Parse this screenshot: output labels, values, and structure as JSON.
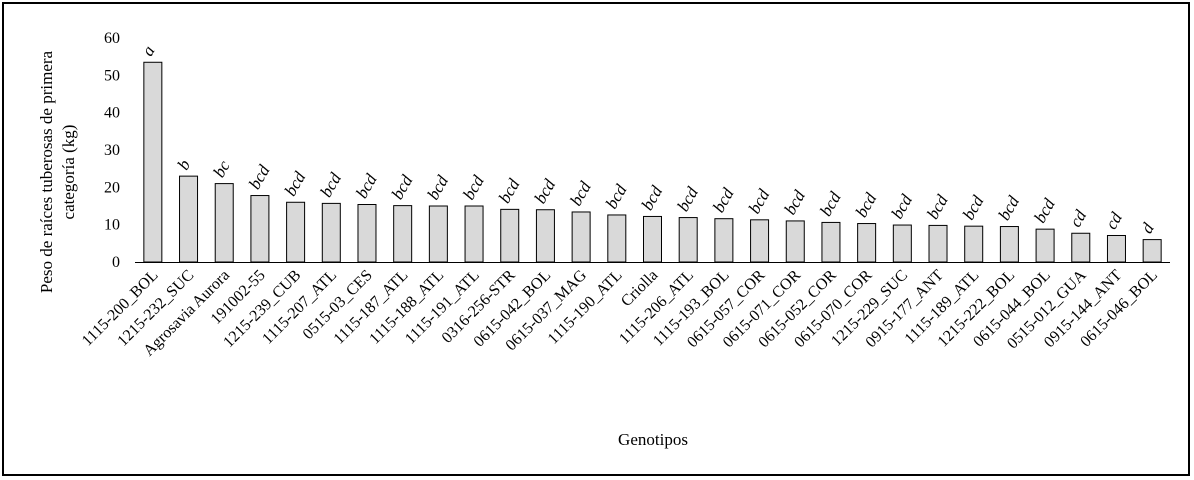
{
  "chart_data": {
    "type": "bar",
    "xlabel": "Genotipos",
    "ylabel_lines": [
      "Peso de raíces tuberosas de primera",
      "categoría (kg)"
    ],
    "ylim": [
      0,
      60
    ],
    "yticks": [
      "0",
      "10",
      "20",
      "30",
      "40",
      "50",
      "60"
    ],
    "grid": false,
    "bar_color": "#d9d9d9",
    "categories": [
      "1115-200_BOL",
      "1215-232_SUC",
      "Agrosavia Aurora",
      "191002-55",
      "1215-239_CUB",
      "1115-207_ATL",
      "0515-03_CES",
      "1115-187_ATL",
      "1115-188_ATL",
      "1115-191_ATL",
      "0316-256-STR",
      "0615-042_BOL",
      "0615-037_MAG",
      "1115-190_ATL",
      "Criolla",
      "1115-206_ATL",
      "1115-193_BOL",
      "0615-057_COR",
      "0615-071_COR",
      "0615-052_COR",
      "0615-070_COR",
      "1215-229_SUC",
      "0915-177_ANT",
      "1115-189_ATL",
      "1215-222_BOL",
      "0615-044_BOL",
      "0515-012_GUA",
      "0915-144_ANT",
      "0615-046_BOL"
    ],
    "values": [
      53.5,
      23,
      21,
      17.8,
      16,
      15.7,
      15.4,
      15.1,
      15.0,
      15.0,
      14.1,
      14.0,
      13.4,
      12.6,
      12.2,
      11.9,
      11.6,
      11.3,
      11.0,
      10.6,
      10.3,
      9.9,
      9.8,
      9.6,
      9.5,
      8.8,
      7.7,
      7.1,
      6.0
    ],
    "letters": [
      "a",
      "b",
      "bc",
      "bcd",
      "bcd",
      "bcd",
      "bcd",
      "bcd",
      "bcd",
      "bcd",
      "bcd",
      "bcd",
      "bcd",
      "bcd",
      "bcd",
      "bcd",
      "bcd",
      "bcd",
      "bcd",
      "bcd",
      "bcd",
      "bcd",
      "bcd",
      "bcd",
      "bcd",
      "bcd",
      "cd",
      "cd",
      "d"
    ]
  }
}
